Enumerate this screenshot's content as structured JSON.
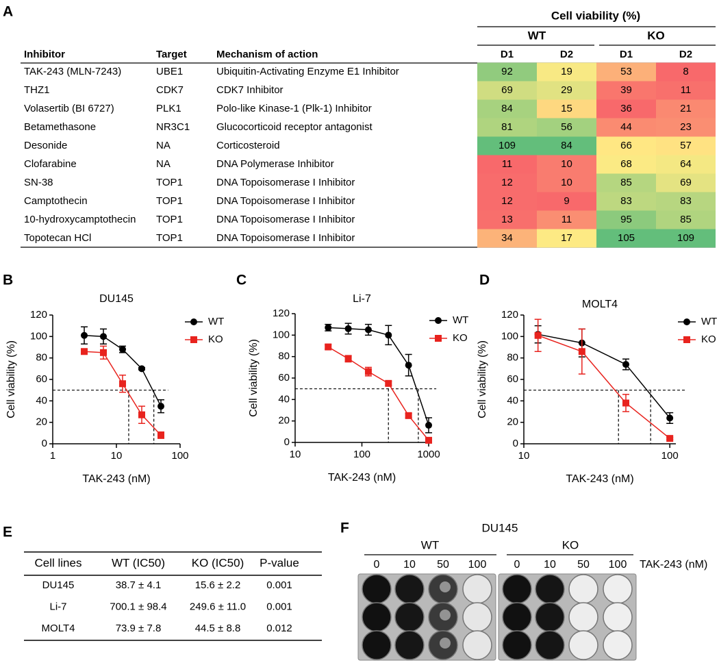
{
  "panel_labels": [
    "A",
    "B",
    "C",
    "D",
    "E",
    "F"
  ],
  "heatmap_table": {
    "group_header": "Cell viability (%)",
    "subgroups": [
      "WT",
      "KO"
    ],
    "columns": [
      "Inhibitor",
      "Target",
      "Mechanism of action",
      "D1",
      "D2",
      "D1",
      "D2"
    ],
    "rows": [
      {
        "inhibitor": "TAK-243 (MLN-7243)",
        "target": "UBE1",
        "mechanism": "Ubiquitin-Activating Enzyme E1 Inhibitor",
        "values": [
          92,
          19,
          53,
          8
        ]
      },
      {
        "inhibitor": "THZ1",
        "target": "CDK7",
        "mechanism": "CDK7 Inhibitor",
        "values": [
          69,
          29,
          39,
          11
        ]
      },
      {
        "inhibitor": "Volasertib (BI 6727)",
        "target": "PLK1",
        "mechanism": "Polo-like Kinase-1 (Plk-1) Inhibitor",
        "values": [
          84,
          15,
          36,
          21
        ]
      },
      {
        "inhibitor": "Betamethasone",
        "target": "NR3C1",
        "mechanism": "Glucocorticoid receptor antagonist",
        "values": [
          81,
          56,
          44,
          23
        ]
      },
      {
        "inhibitor": "Desonide",
        "target": "NA",
        "mechanism": "Corticosteroid",
        "values": [
          109,
          84,
          66,
          57
        ]
      },
      {
        "inhibitor": "Clofarabine",
        "target": "NA",
        "mechanism": "DNA Polymerase Inhibitor",
        "values": [
          11,
          10,
          68,
          64
        ]
      },
      {
        "inhibitor": "SN-38",
        "target": "TOP1",
        "mechanism": "DNA Topoisomerase I Inhibitor",
        "values": [
          12,
          10,
          85,
          69
        ]
      },
      {
        "inhibitor": "Camptothecin",
        "target": "TOP1",
        "mechanism": "DNA Topoisomerase I Inhibitor",
        "values": [
          12,
          9,
          83,
          83
        ]
      },
      {
        "inhibitor": "10-hydroxycamptothecin",
        "target": "TOP1",
        "mechanism": "DNA Topoisomerase I Inhibitor",
        "values": [
          13,
          11,
          95,
          85
        ]
      },
      {
        "inhibitor": "Topotecan HCl",
        "target": "TOP1",
        "mechanism": "DNA Topoisomerase I Inhibitor",
        "values": [
          34,
          17,
          105,
          109
        ]
      }
    ]
  },
  "chart_data": [
    {
      "type": "line",
      "title": "DU145",
      "x_label": "TAK-243 (nM)",
      "y_label": "Cell viability (%)",
      "xscale": "log",
      "x": [
        3.125,
        6.25,
        12.5,
        25,
        50
      ],
      "xlim": [
        1,
        100
      ],
      "xticks": [
        1,
        10,
        100
      ],
      "ylim": [
        0,
        120
      ],
      "yticks": [
        0,
        20,
        40,
        60,
        80,
        100,
        120
      ],
      "legend": "upper right",
      "reference_lines": {
        "y": 50,
        "x": [
          15.6,
          38.7
        ]
      },
      "series": [
        {
          "name": "WT",
          "color": "#000000",
          "marker": "circle",
          "values": [
            101,
            100,
            88,
            70,
            35
          ],
          "errors": [
            8,
            7,
            3,
            1,
            6
          ]
        },
        {
          "name": "KO",
          "color": "#e8231e",
          "marker": "square",
          "values": [
            86,
            85,
            56,
            27,
            8
          ],
          "errors": [
            2,
            6,
            8,
            8,
            3
          ]
        }
      ]
    },
    {
      "type": "line",
      "title": "Li-7",
      "x_label": "TAK-243 (nM)",
      "y_label": "Cell viability (%)",
      "xscale": "log",
      "x": [
        31.25,
        62.5,
        125,
        250,
        500,
        1000
      ],
      "xlim": [
        10,
        1000
      ],
      "xticks": [
        10,
        100,
        1000
      ],
      "ylim": [
        0,
        120
      ],
      "yticks": [
        0,
        20,
        40,
        60,
        80,
        100,
        120
      ],
      "legend": "upper right",
      "reference_lines": {
        "y": 50,
        "x": [
          249.6,
          700.1
        ]
      },
      "series": [
        {
          "name": "WT",
          "color": "#000000",
          "marker": "circle",
          "values": [
            107,
            106,
            105,
            100,
            72,
            16
          ],
          "errors": [
            3,
            5,
            5,
            9,
            10,
            7
          ]
        },
        {
          "name": "KO",
          "color": "#e8231e",
          "marker": "square",
          "values": [
            89,
            78,
            66,
            55,
            25,
            2
          ],
          "errors": [
            2,
            3,
            4,
            2,
            2,
            2
          ]
        }
      ]
    },
    {
      "type": "line",
      "title": "MOLT4",
      "x_label": "TAK-243 (nM)",
      "y_label": "Cell viability (%)",
      "xscale": "log",
      "x": [
        12.5,
        25,
        50,
        100
      ],
      "xlim": [
        10,
        110
      ],
      "xticks": [
        10,
        100
      ],
      "ylim": [
        0,
        120
      ],
      "yticks": [
        0,
        20,
        40,
        60,
        80,
        100,
        120
      ],
      "legend": "upper right",
      "reference_lines": {
        "y": 50,
        "x": [
          44.5,
          73.9
        ]
      },
      "series": [
        {
          "name": "WT",
          "color": "#000000",
          "marker": "circle",
          "values": [
            102,
            94,
            74,
            24
          ],
          "errors": [
            8,
            13,
            5,
            5
          ]
        },
        {
          "name": "KO",
          "color": "#e8231e",
          "marker": "square",
          "values": [
            101,
            86,
            38,
            5
          ],
          "errors": [
            15,
            21,
            8,
            1
          ]
        }
      ]
    }
  ],
  "ic50_table": {
    "columns": [
      "Cell lines",
      "WT (IC50)",
      "KO (IC50)",
      "P-value"
    ],
    "rows": [
      [
        "DU145",
        "38.7 ± 4.1",
        "15.6 ± 2.2",
        "0.001"
      ],
      [
        "Li-7",
        "700.1 ± 98.4",
        "249.6 ± 11.0",
        "0.001"
      ],
      [
        "MOLT4",
        "73.9 ± 7.8",
        "44.5 ± 8.8",
        "0.012"
      ]
    ]
  },
  "plate_image": {
    "title": "DU145",
    "groups": [
      "WT",
      "KO"
    ],
    "doses": [
      "0",
      "10",
      "50",
      "100"
    ],
    "dose_label": "TAK-243 (nM)"
  }
}
